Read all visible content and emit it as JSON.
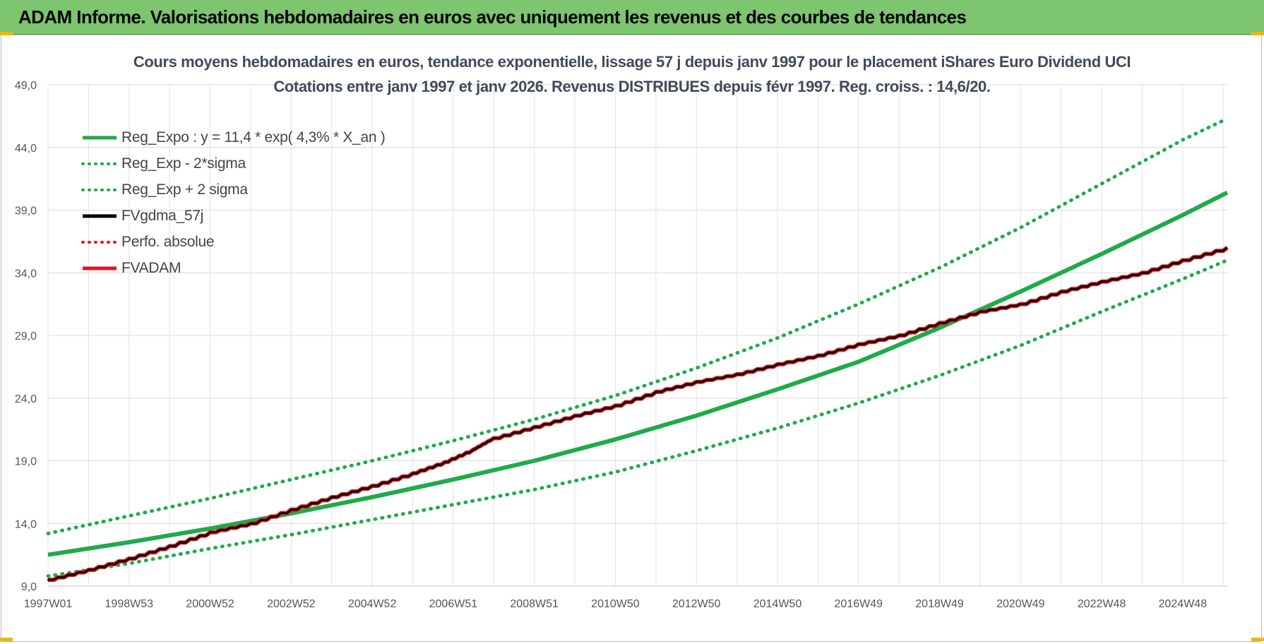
{
  "header": {
    "title": "ADAM Informe. Valorisations hebdomadaires en euros avec uniquement les revenus et des courbes de tendances"
  },
  "chart_data": {
    "type": "line",
    "title": "Cours moyens hebdomadaires en euros, tendance exponentielle, lissage 57 j depuis janv 1997 pour le placement iShares Euro Dividend UCI",
    "subtitle": "Cotations entre janv 1997 et janv 2026. Revenus DISTRIBUES depuis févr 1997. Reg. croiss. : 14,6/20.",
    "xlabel": "",
    "ylabel": "",
    "x_tick_labels": [
      "1997W01",
      "1998W53",
      "2000W52",
      "2002W52",
      "2004W52",
      "2006W51",
      "2008W51",
      "2010W50",
      "2012W50",
      "2014W50",
      "2016W49",
      "2018W49",
      "2020W49",
      "2022W48",
      "2024W48"
    ],
    "x_tick_years": [
      1997.0,
      1999.0,
      2001.0,
      2003.0,
      2005.0,
      2007.0,
      2009.0,
      2011.0,
      2013.0,
      2015.0,
      2017.0,
      2019.0,
      2021.0,
      2023.0,
      2025.0
    ],
    "xlim": [
      1997.0,
      2026.1
    ],
    "y_tick_labels": [
      "9,0",
      "14,0",
      "19,0",
      "24,0",
      "29,0",
      "34,0",
      "39,0",
      "44,0",
      "49,0"
    ],
    "y_ticks": [
      9,
      14,
      19,
      24,
      29,
      34,
      39,
      44,
      49
    ],
    "ylim": [
      9,
      49
    ],
    "grid": true,
    "legend_position": "top-left",
    "series": [
      {
        "name": "Reg_Expo : y = 11,4 * exp( 4,3% *  X_an )",
        "color": "#1faa4b",
        "style": "solid",
        "x": [
          1997.0,
          1999.0,
          2001.0,
          2003.0,
          2005.0,
          2007.0,
          2009.0,
          2011.0,
          2013.0,
          2015.0,
          2017.0,
          2019.0,
          2021.0,
          2023.0,
          2025.0,
          2026.1
        ],
        "y": [
          11.5,
          12.5,
          13.6,
          14.8,
          16.1,
          17.5,
          19.0,
          20.7,
          22.6,
          24.7,
          26.9,
          29.6,
          32.5,
          35.5,
          38.6,
          40.4
        ]
      },
      {
        "name": "Reg_Exp - 2*sigma",
        "color": "#1faa4b",
        "style": "dotted",
        "x": [
          1997.0,
          1999.0,
          2001.0,
          2003.0,
          2005.0,
          2007.0,
          2009.0,
          2011.0,
          2013.0,
          2015.0,
          2017.0,
          2019.0,
          2021.0,
          2023.0,
          2025.0,
          2026.1
        ],
        "y": [
          9.8,
          10.8,
          12.0,
          13.1,
          14.3,
          15.5,
          16.7,
          18.1,
          19.8,
          21.6,
          23.6,
          25.8,
          28.2,
          30.9,
          33.5,
          35.0
        ]
      },
      {
        "name": "Reg_Exp + 2 sigma",
        "color": "#1faa4b",
        "style": "dotted",
        "x": [
          1997.0,
          1999.0,
          2001.0,
          2003.0,
          2005.0,
          2007.0,
          2009.0,
          2011.0,
          2013.0,
          2015.0,
          2017.0,
          2019.0,
          2021.0,
          2023.0,
          2025.0,
          2026.1
        ],
        "y": [
          13.2,
          14.6,
          16.0,
          17.5,
          19.0,
          20.6,
          22.3,
          24.2,
          26.4,
          28.8,
          31.5,
          34.4,
          37.6,
          41.1,
          44.6,
          46.3
        ]
      },
      {
        "name": "FVgdma_57j",
        "color": "#000000",
        "style": "solid",
        "x": [
          1997.0,
          1998.0,
          1999.0,
          2000.0,
          2001.0,
          2002.0,
          2003.0,
          2004.0,
          2005.0,
          2006.0,
          2006.8,
          2007.5,
          2008.0,
          2009.0,
          2010.0,
          2011.0,
          2012.0,
          2013.0,
          2014.0,
          2015.0,
          2016.0,
          2017.0,
          2018.0,
          2019.0,
          2020.0,
          2021.0,
          2022.0,
          2023.0,
          2024.0,
          2025.0,
          2026.1
        ],
        "y": [
          9.5,
          10.3,
          11.2,
          12.2,
          13.3,
          14.0,
          15.1,
          16.1,
          17.0,
          18.0,
          18.9,
          19.9,
          20.8,
          21.7,
          22.6,
          23.4,
          24.5,
          25.3,
          25.9,
          26.7,
          27.4,
          28.3,
          29.0,
          30.0,
          30.9,
          31.5,
          32.5,
          33.3,
          34.0,
          35.0,
          36.0
        ]
      },
      {
        "name": "Perfo. absolue",
        "color": "#e8141c",
        "style": "dotted",
        "x": [
          1997.0,
          1998.0,
          1999.0,
          2000.0,
          2001.0,
          2002.0,
          2003.0,
          2004.0,
          2005.0,
          2006.0,
          2006.8,
          2007.5,
          2008.0,
          2009.0,
          2010.0,
          2011.0,
          2012.0,
          2013.0,
          2014.0,
          2015.0,
          2016.0,
          2017.0,
          2018.0,
          2019.0,
          2020.0,
          2021.0,
          2022.0,
          2023.0,
          2024.0,
          2025.0,
          2026.1
        ],
        "y": [
          9.5,
          10.3,
          11.2,
          12.2,
          13.3,
          14.0,
          15.1,
          16.1,
          17.0,
          18.0,
          18.9,
          19.9,
          20.8,
          21.7,
          22.6,
          23.4,
          24.5,
          25.3,
          25.9,
          26.7,
          27.4,
          28.3,
          29.0,
          30.0,
          30.9,
          31.5,
          32.5,
          33.3,
          34.0,
          35.0,
          36.0
        ]
      },
      {
        "name": "FVADAM",
        "color": "#e8141c",
        "style": "solid",
        "x": [
          1997.0,
          1998.0,
          1999.0,
          2000.0,
          2001.0,
          2002.0,
          2003.0,
          2004.0,
          2005.0,
          2006.0,
          2006.8,
          2007.5,
          2008.0,
          2009.0,
          2010.0,
          2011.0,
          2012.0,
          2013.0,
          2014.0,
          2015.0,
          2016.0,
          2017.0,
          2018.0,
          2019.0,
          2020.0,
          2021.0,
          2022.0,
          2023.0,
          2024.0,
          2025.0,
          2026.1
        ],
        "y": [
          9.5,
          10.3,
          11.2,
          12.2,
          13.3,
          14.0,
          15.1,
          16.1,
          17.0,
          18.0,
          18.9,
          19.9,
          20.8,
          21.7,
          22.6,
          23.4,
          24.5,
          25.3,
          25.9,
          26.7,
          27.4,
          28.3,
          29.0,
          30.0,
          30.9,
          31.5,
          32.5,
          33.3,
          34.0,
          35.0,
          36.0
        ]
      }
    ]
  }
}
